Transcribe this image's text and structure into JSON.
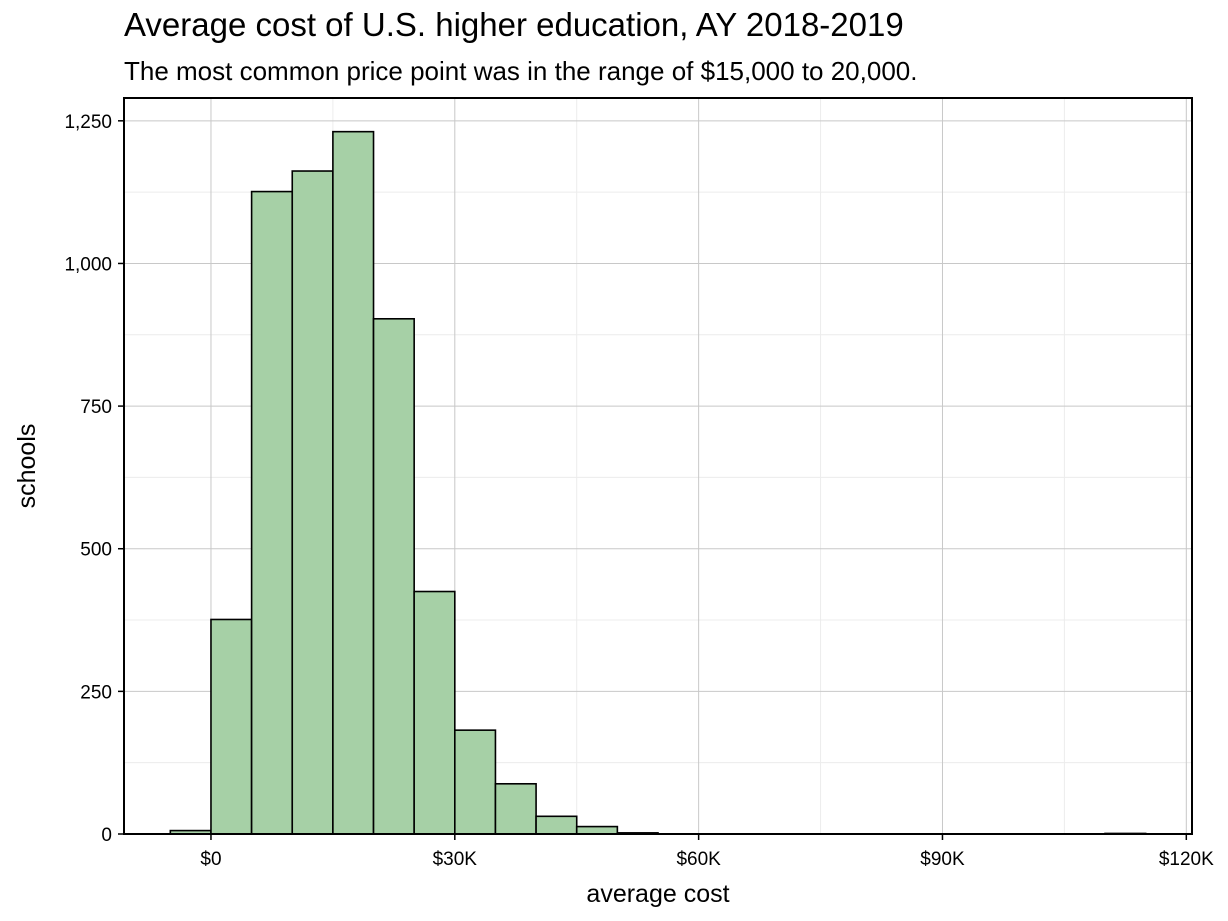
{
  "chart_data": {
    "type": "bar",
    "title": "Average cost of U.S. higher education, AY 2018-2019",
    "subtitle": "The most common price point was in the range of $15,000 to 20,000.",
    "xlabel": "average cost",
    "ylabel": "schools",
    "bin_width": 5000,
    "bins": [
      {
        "x0": -5000,
        "x1": 0,
        "count": 6
      },
      {
        "x0": 0,
        "x1": 5000,
        "count": 376
      },
      {
        "x0": 5000,
        "x1": 10000,
        "count": 1126
      },
      {
        "x0": 10000,
        "x1": 15000,
        "count": 1162
      },
      {
        "x0": 15000,
        "x1": 20000,
        "count": 1231
      },
      {
        "x0": 20000,
        "x1": 25000,
        "count": 903
      },
      {
        "x0": 25000,
        "x1": 30000,
        "count": 425
      },
      {
        "x0": 30000,
        "x1": 35000,
        "count": 182
      },
      {
        "x0": 35000,
        "x1": 40000,
        "count": 88
      },
      {
        "x0": 40000,
        "x1": 45000,
        "count": 31
      },
      {
        "x0": 45000,
        "x1": 50000,
        "count": 13
      },
      {
        "x0": 50000,
        "x1": 55000,
        "count": 2
      },
      {
        "x0": 55000,
        "x1": 60000,
        "count": 0
      },
      {
        "x0": 60000,
        "x1": 65000,
        "count": 0
      },
      {
        "x0": 65000,
        "x1": 70000,
        "count": 0
      },
      {
        "x0": 70000,
        "x1": 75000,
        "count": 0
      },
      {
        "x0": 75000,
        "x1": 80000,
        "count": 0
      },
      {
        "x0": 80000,
        "x1": 85000,
        "count": 0
      },
      {
        "x0": 85000,
        "x1": 90000,
        "count": 0
      },
      {
        "x0": 90000,
        "x1": 95000,
        "count": 0
      },
      {
        "x0": 95000,
        "x1": 100000,
        "count": 0
      },
      {
        "x0": 100000,
        "x1": 105000,
        "count": 0
      },
      {
        "x0": 105000,
        "x1": 110000,
        "count": 0
      },
      {
        "x0": 110000,
        "x1": 115000,
        "count": 1
      }
    ],
    "xlim": [
      -10700,
      120700
    ],
    "ylim": [
      0,
      1290
    ],
    "x_ticks": [
      {
        "value": 0,
        "label": "$0"
      },
      {
        "value": 30000,
        "label": "$30K"
      },
      {
        "value": 60000,
        "label": "$60K"
      },
      {
        "value": 90000,
        "label": "$90K"
      },
      {
        "value": 120000,
        "label": "$120K"
      }
    ],
    "x_minor_ticks": [
      -15000,
      15000,
      45000,
      75000,
      105000
    ],
    "y_ticks": [
      {
        "value": 0,
        "label": "0"
      },
      {
        "value": 250,
        "label": "250"
      },
      {
        "value": 500,
        "label": "500"
      },
      {
        "value": 750,
        "label": "750"
      },
      {
        "value": 1000,
        "label": "1,000"
      },
      {
        "value": 1250,
        "label": "1,250"
      }
    ],
    "y_minor_ticks": [
      125,
      375,
      625,
      875,
      1125
    ],
    "grid": true,
    "colors": {
      "bar_fill": "#a6d0a6",
      "bar_edge": "#000000",
      "grid_major": "#c8c8c8",
      "grid_minor": "#ececec"
    }
  }
}
